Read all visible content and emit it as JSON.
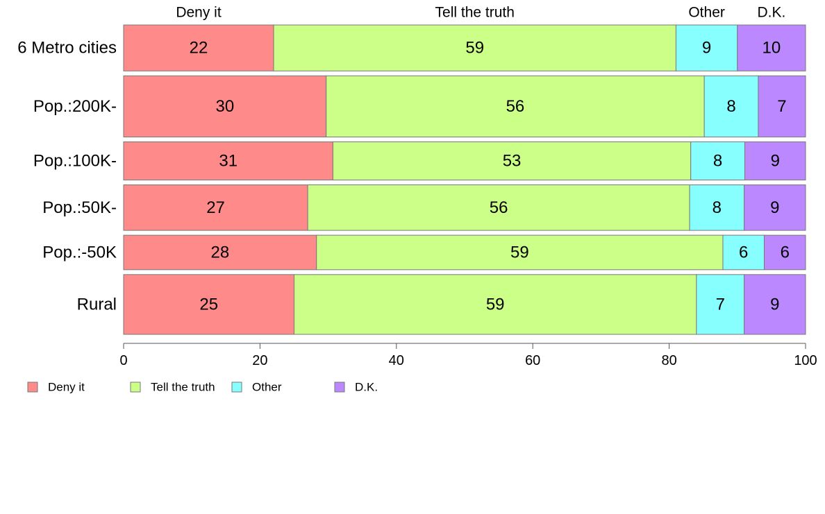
{
  "chart_data": {
    "type": "bar",
    "orientation": "horizontal",
    "stacked": true,
    "categories": [
      "6 Metro cities",
      "Pop.:200K-",
      "Pop.:100K-",
      "Pop.:50K-",
      "Pop.:-50K",
      "Rural"
    ],
    "row_weights": [
      1.0,
      1.33,
      0.83,
      0.99,
      0.75,
      1.3
    ],
    "series": [
      {
        "name": "Deny it",
        "color": "#ff8a8a",
        "values": [
          22,
          30,
          31,
          27,
          28,
          25
        ]
      },
      {
        "name": "Tell the truth",
        "color": "#ccff88",
        "values": [
          59,
          56,
          53,
          56,
          59,
          59
        ]
      },
      {
        "name": "Other",
        "color": "#88ffff",
        "values": [
          9,
          8,
          8,
          8,
          6,
          7
        ]
      },
      {
        "name": "D.K.",
        "color": "#bb88ff",
        "values": [
          10,
          7,
          9,
          9,
          6,
          9
        ]
      }
    ],
    "xlim": [
      0,
      100
    ],
    "xticks": [
      "0",
      "20",
      "40",
      "60",
      "80",
      "100"
    ],
    "title": "",
    "xlabel": "",
    "ylabel": "",
    "legend_position": "bottom-left",
    "grid": false
  }
}
